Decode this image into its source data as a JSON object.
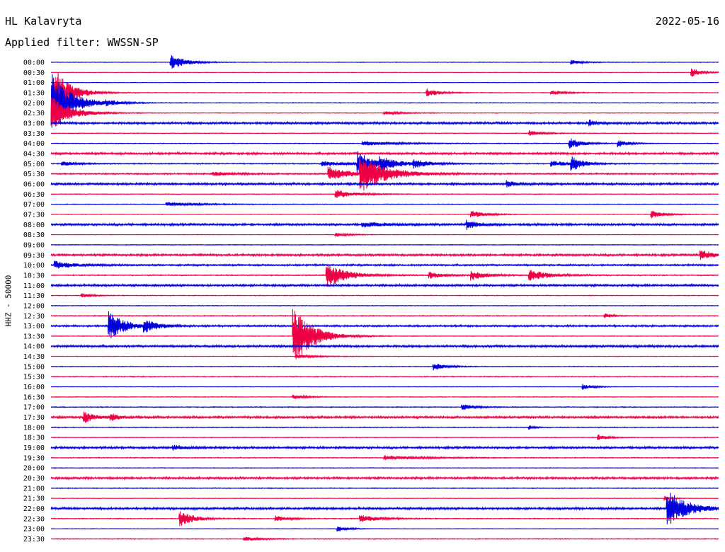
{
  "header": {
    "station": "HL Kalavryta",
    "date": "2022-05-16",
    "filter_label": "Applied filter: WWSSN-SP"
  },
  "axis": {
    "ylabel": "HHZ - 50000"
  },
  "colors": {
    "even_row": "#0000dd",
    "odd_row": "#ee0044"
  },
  "chart_data": {
    "type": "line",
    "title": "HL Kalavryta",
    "subtitle": "Applied filter: WWSSN-SP",
    "date": "2022-05-16",
    "ylabel": "HHZ - 50000",
    "xlabel": "",
    "row_minutes": 30,
    "rows": [
      "00:00",
      "00:30",
      "01:00",
      "01:30",
      "02:00",
      "02:30",
      "03:00",
      "03:30",
      "04:00",
      "04:30",
      "05:00",
      "05:30",
      "06:00",
      "06:30",
      "07:00",
      "07:30",
      "08:00",
      "08:30",
      "09:00",
      "09:30",
      "10:00",
      "10:30",
      "11:00",
      "11:30",
      "12:00",
      "12:30",
      "13:00",
      "13:30",
      "14:00",
      "14:30",
      "15:00",
      "15:30",
      "16:00",
      "16:30",
      "17:00",
      "17:30",
      "18:00",
      "18:30",
      "19:00",
      "19:30",
      "20:00",
      "20:30",
      "21:00",
      "21:30",
      "22:00",
      "22:30",
      "23:00",
      "23:30"
    ],
    "noise": [
      0.3,
      0.3,
      0.3,
      0.4,
      0.4,
      0.4,
      1.2,
      0.4,
      0.4,
      1.2,
      0.6,
      0.8,
      1.2,
      0.4,
      0.4,
      0.3,
      1.2,
      0.3,
      0.4,
      1.2,
      1.0,
      0.6,
      1.2,
      0.4,
      0.4,
      0.5,
      1.0,
      0.4,
      1.2,
      0.3,
      0.4,
      0.5,
      0.3,
      0.4,
      0.5,
      1.2,
      0.5,
      0.4,
      1.2,
      0.5,
      0.4,
      1.2,
      0.5,
      0.3,
      1.2,
      0.5,
      0.3,
      0.5
    ],
    "events": [
      {
        "row": 0,
        "min": 5.4,
        "amp": 10,
        "dur": 1.2
      },
      {
        "row": 0,
        "min": 23.4,
        "amp": 3,
        "dur": 1.0
      },
      {
        "row": 1,
        "min": 28.8,
        "amp": 6,
        "dur": 0.8
      },
      {
        "row": 3,
        "min": 0.2,
        "amp": 35,
        "dur": 1.2
      },
      {
        "row": 3,
        "min": 16.9,
        "amp": 6,
        "dur": 1.0
      },
      {
        "row": 3,
        "min": 22.5,
        "amp": 3,
        "dur": 1.2
      },
      {
        "row": 4,
        "min": 0.0,
        "amp": 45,
        "dur": 1.5
      },
      {
        "row": 4,
        "min": 2.5,
        "amp": 3,
        "dur": 1.0
      },
      {
        "row": 5,
        "min": 0.0,
        "amp": 25,
        "dur": 1.5
      },
      {
        "row": 5,
        "min": 15.0,
        "amp": 2,
        "dur": 1.5
      },
      {
        "row": 6,
        "min": 24.2,
        "amp": 4,
        "dur": 0.6
      },
      {
        "row": 7,
        "min": 21.5,
        "amp": 4,
        "dur": 1.0
      },
      {
        "row": 8,
        "min": 14.0,
        "amp": 3,
        "dur": 3.0
      },
      {
        "row": 8,
        "min": 23.3,
        "amp": 8,
        "dur": 1.0
      },
      {
        "row": 8,
        "min": 25.5,
        "amp": 5,
        "dur": 0.8
      },
      {
        "row": 10,
        "min": 0.5,
        "amp": 4,
        "dur": 1.0
      },
      {
        "row": 10,
        "min": 12.2,
        "amp": 3,
        "dur": 2.5
      },
      {
        "row": 10,
        "min": 13.8,
        "amp": 18,
        "dur": 1.0
      },
      {
        "row": 10,
        "min": 14.8,
        "amp": 8,
        "dur": 1.5
      },
      {
        "row": 10,
        "min": 16.3,
        "amp": 5,
        "dur": 1.2
      },
      {
        "row": 10,
        "min": 22.5,
        "amp": 4,
        "dur": 1.5
      },
      {
        "row": 10,
        "min": 23.4,
        "amp": 10,
        "dur": 0.8
      },
      {
        "row": 11,
        "min": 7.3,
        "amp": 3,
        "dur": 1.5
      },
      {
        "row": 11,
        "min": 12.5,
        "amp": 10,
        "dur": 1.5
      },
      {
        "row": 11,
        "min": 13.9,
        "amp": 25,
        "dur": 2.0
      },
      {
        "row": 12,
        "min": 20.5,
        "amp": 4,
        "dur": 0.8
      },
      {
        "row": 13,
        "min": 12.8,
        "amp": 6,
        "dur": 1.5
      },
      {
        "row": 14,
        "min": 5.2,
        "amp": 3,
        "dur": 2.5
      },
      {
        "row": 15,
        "min": 18.9,
        "amp": 5,
        "dur": 1.2
      },
      {
        "row": 15,
        "min": 27.0,
        "amp": 6,
        "dur": 1.0
      },
      {
        "row": 16,
        "min": 14.0,
        "amp": 3,
        "dur": 2.0
      },
      {
        "row": 16,
        "min": 18.7,
        "amp": 6,
        "dur": 0.8
      },
      {
        "row": 17,
        "min": 12.8,
        "amp": 3,
        "dur": 1.0
      },
      {
        "row": 19,
        "min": 29.2,
        "amp": 8,
        "dur": 0.8
      },
      {
        "row": 20,
        "min": 0.2,
        "amp": 5,
        "dur": 1.5
      },
      {
        "row": 21,
        "min": 12.4,
        "amp": 18,
        "dur": 1.5
      },
      {
        "row": 21,
        "min": 17.0,
        "amp": 5,
        "dur": 1.0
      },
      {
        "row": 21,
        "min": 18.9,
        "amp": 7,
        "dur": 1.2
      },
      {
        "row": 21,
        "min": 21.5,
        "amp": 8,
        "dur": 1.5
      },
      {
        "row": 23,
        "min": 1.4,
        "amp": 3,
        "dur": 0.8
      },
      {
        "row": 25,
        "min": 24.9,
        "amp": 4,
        "dur": 0.5
      },
      {
        "row": 26,
        "min": 2.6,
        "amp": 20,
        "dur": 1.2
      },
      {
        "row": 26,
        "min": 4.2,
        "amp": 8,
        "dur": 1.0
      },
      {
        "row": 27,
        "min": 10.9,
        "amp": 40,
        "dur": 1.5
      },
      {
        "row": 29,
        "min": 11.0,
        "amp": 3,
        "dur": 1.5
      },
      {
        "row": 30,
        "min": 17.2,
        "amp": 5,
        "dur": 1.0
      },
      {
        "row": 32,
        "min": 23.9,
        "amp": 4,
        "dur": 0.8
      },
      {
        "row": 33,
        "min": 10.9,
        "amp": 3,
        "dur": 1.0
      },
      {
        "row": 34,
        "min": 18.5,
        "amp": 4,
        "dur": 1.0
      },
      {
        "row": 35,
        "min": 1.5,
        "amp": 8,
        "dur": 0.8
      },
      {
        "row": 35,
        "min": 2.7,
        "amp": 5,
        "dur": 0.6
      },
      {
        "row": 36,
        "min": 21.5,
        "amp": 3,
        "dur": 0.4
      },
      {
        "row": 37,
        "min": 24.6,
        "amp": 4,
        "dur": 0.8
      },
      {
        "row": 38,
        "min": 5.5,
        "amp": 3,
        "dur": 1.0
      },
      {
        "row": 39,
        "min": 15.0,
        "amp": 3,
        "dur": 3.0
      },
      {
        "row": 43,
        "min": 27.6,
        "amp": 3,
        "dur": 0.5
      },
      {
        "row": 44,
        "min": 27.7,
        "amp": 25,
        "dur": 1.5
      },
      {
        "row": 45,
        "min": 5.8,
        "amp": 12,
        "dur": 1.0
      },
      {
        "row": 45,
        "min": 10.1,
        "amp": 4,
        "dur": 1.0
      },
      {
        "row": 45,
        "min": 13.9,
        "amp": 5,
        "dur": 1.5
      },
      {
        "row": 46,
        "min": 12.9,
        "amp": 4,
        "dur": 0.8
      },
      {
        "row": 47,
        "min": 8.7,
        "amp": 3,
        "dur": 1.2
      }
    ]
  }
}
